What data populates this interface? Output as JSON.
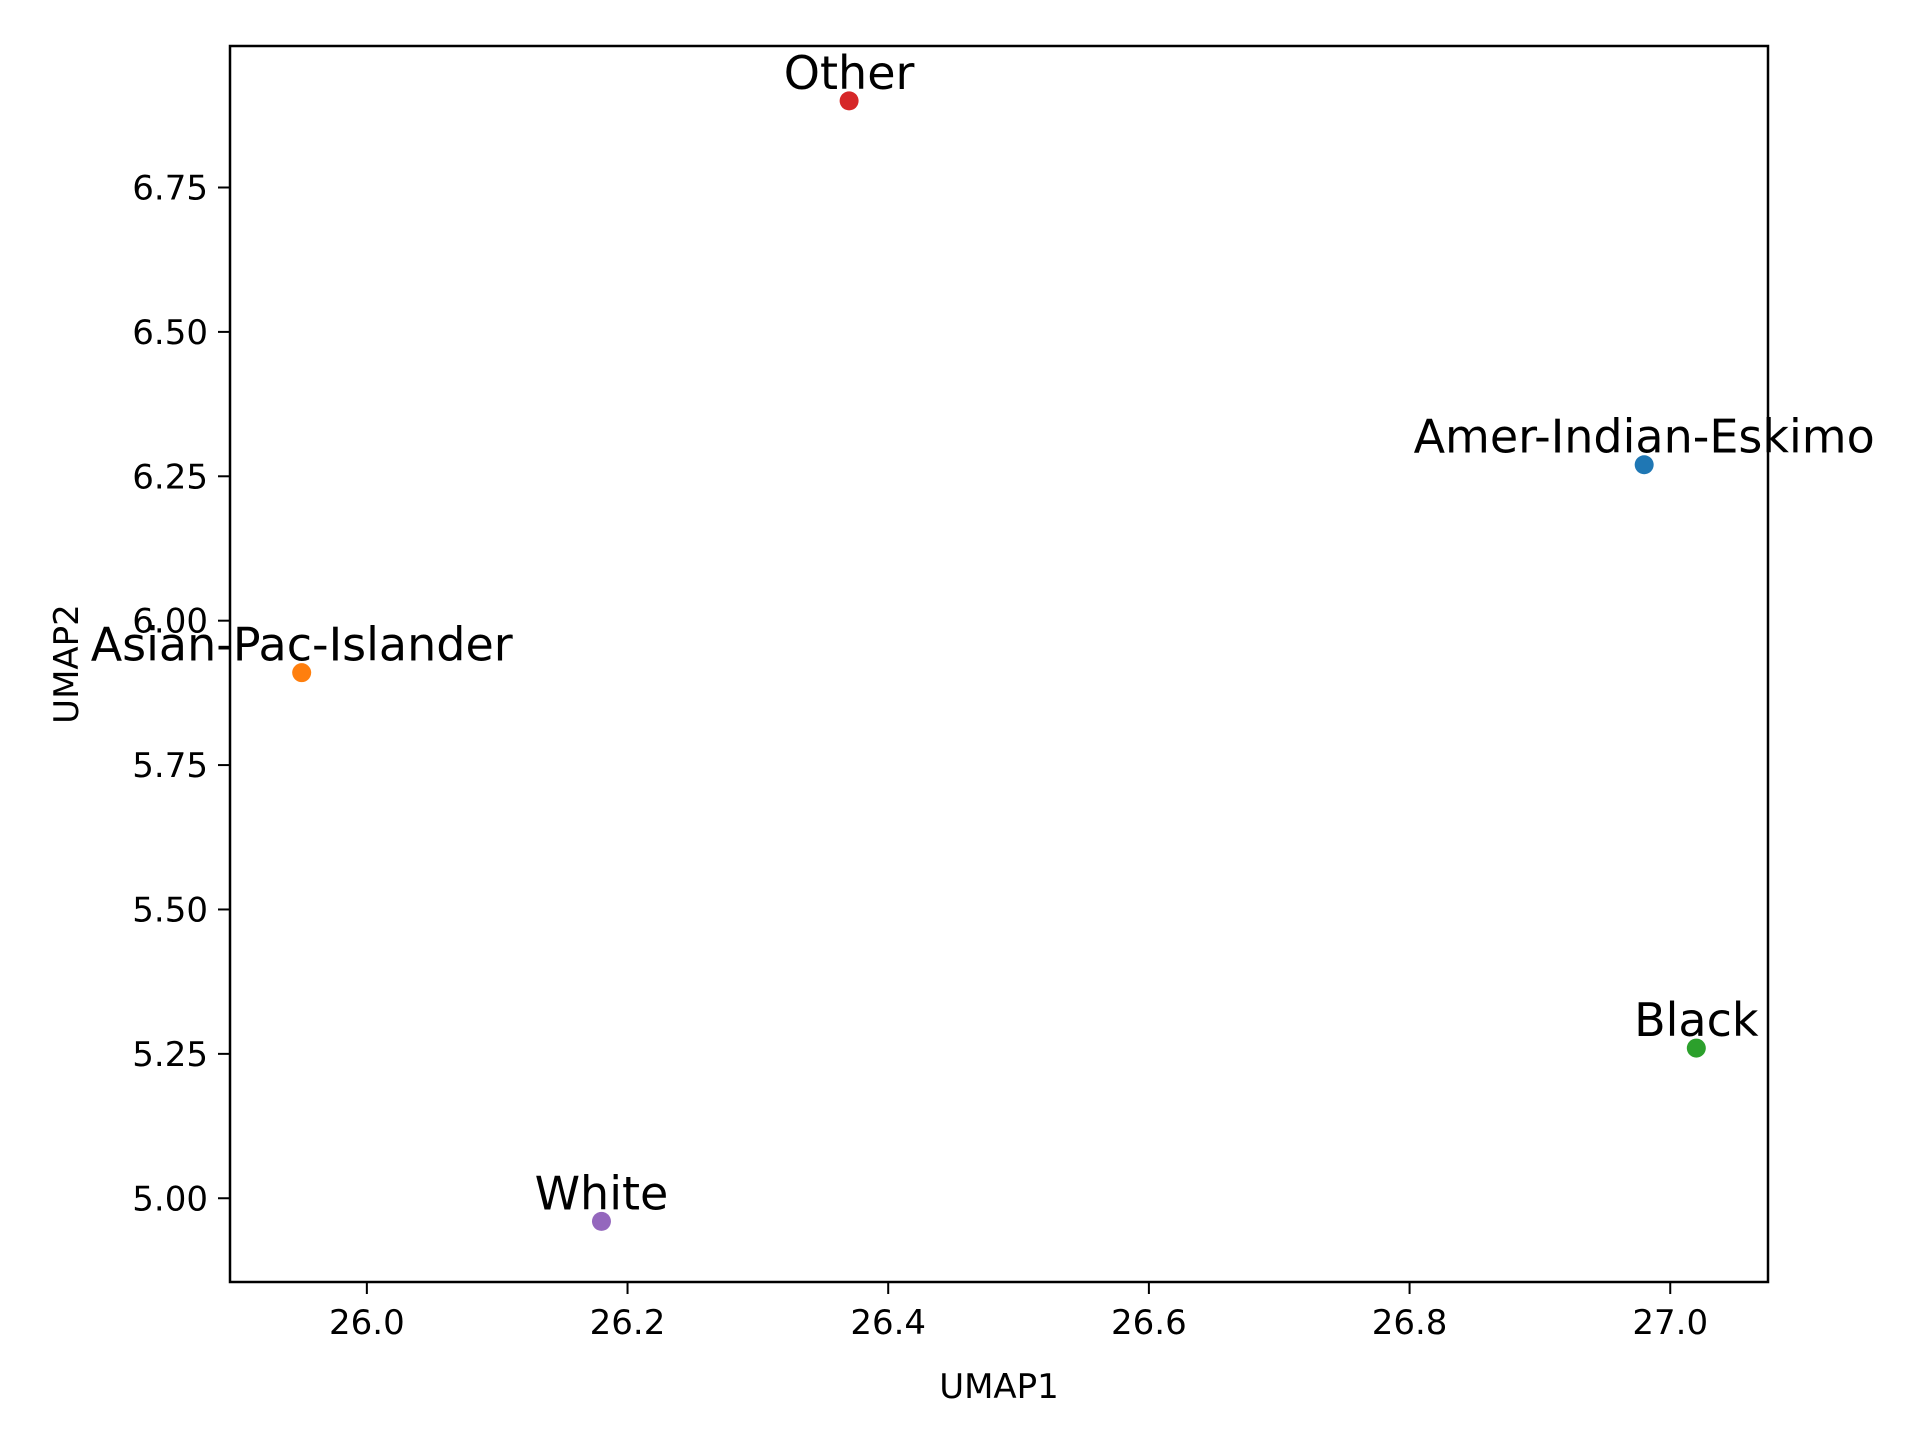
{
  "chart_data": {
    "type": "scatter",
    "title": "",
    "xlabel": "UMAP1",
    "ylabel": "UMAP2",
    "xlim": [
      25.895,
      27.075
    ],
    "ylim": [
      4.855,
      6.995
    ],
    "xticks": [
      {
        "value": 26.0,
        "label": "26.0"
      },
      {
        "value": 26.2,
        "label": "26.2"
      },
      {
        "value": 26.4,
        "label": "26.4"
      },
      {
        "value": 26.6,
        "label": "26.6"
      },
      {
        "value": 26.8,
        "label": "26.8"
      },
      {
        "value": 27.0,
        "label": "27.0"
      }
    ],
    "yticks": [
      {
        "value": 5.0,
        "label": "5.00"
      },
      {
        "value": 5.25,
        "label": "5.25"
      },
      {
        "value": 5.5,
        "label": "5.50"
      },
      {
        "value": 5.75,
        "label": "5.75"
      },
      {
        "value": 6.0,
        "label": "6.00"
      },
      {
        "value": 6.25,
        "label": "6.25"
      },
      {
        "value": 6.5,
        "label": "6.50"
      },
      {
        "value": 6.75,
        "label": "6.75"
      }
    ],
    "grid": false,
    "legend": "none",
    "points": [
      {
        "label": "Amer-Indian-Eskimo",
        "x": 26.98,
        "y": 6.27,
        "color": "#1f77b4"
      },
      {
        "label": "Asian-Pac-Islander",
        "x": 25.95,
        "y": 5.91,
        "color": "#ff7f0e"
      },
      {
        "label": "Black",
        "x": 27.02,
        "y": 5.26,
        "color": "#2ca02c"
      },
      {
        "label": "Other",
        "x": 26.37,
        "y": 6.9,
        "color": "#d62728"
      },
      {
        "label": "White",
        "x": 26.18,
        "y": 4.96,
        "color": "#9467bd"
      }
    ]
  }
}
